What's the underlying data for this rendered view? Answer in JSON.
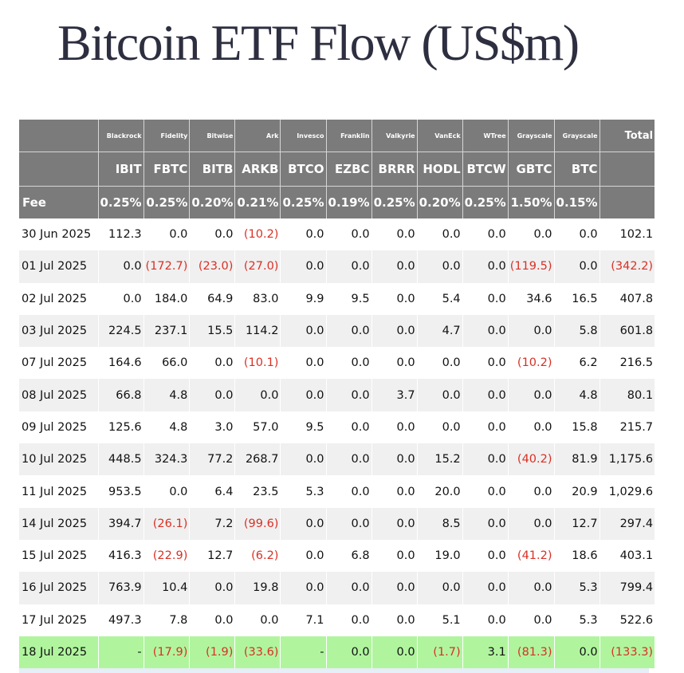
{
  "title": "Bitcoin ETF Flow (US$m)",
  "colors": {
    "header_bg": "#7b7b7b",
    "negative": "#d93025",
    "highlight_row": "#b0f59e",
    "alt_row": "#f0f0f0"
  },
  "chart_data": {
    "type": "table",
    "title": "Bitcoin ETF Flow (US$m)",
    "issuers": [
      "Blackrock",
      "Fidelity",
      "Bitwise",
      "Ark",
      "Invesco",
      "Franklin",
      "Valkyrie",
      "VanEck",
      "WTree",
      "Grayscale",
      "Grayscale"
    ],
    "tickers": [
      "IBIT",
      "FBTC",
      "BITB",
      "ARKB",
      "BTCO",
      "EZBC",
      "BRRR",
      "HODL",
      "BTCW",
      "GBTC",
      "BTC"
    ],
    "total_label": "Total",
    "fee_label": "Fee",
    "fees": [
      "0.25%",
      "0.25%",
      "0.20%",
      "0.21%",
      "0.25%",
      "0.19%",
      "0.25%",
      "0.20%",
      "0.25%",
      "1.50%",
      "0.15%"
    ],
    "rows": [
      {
        "date": "30 Jun 2025",
        "values": [
          "112.3",
          "0.0",
          "0.0",
          "(10.2)",
          "0.0",
          "0.0",
          "0.0",
          "0.0",
          "0.0",
          "0.0",
          "0.0"
        ],
        "total": "102.1"
      },
      {
        "date": "01 Jul 2025",
        "values": [
          "0.0",
          "(172.7)",
          "(23.0)",
          "(27.0)",
          "0.0",
          "0.0",
          "0.0",
          "0.0",
          "0.0",
          "(119.5)",
          "0.0"
        ],
        "total": "(342.2)"
      },
      {
        "date": "02 Jul 2025",
        "values": [
          "0.0",
          "184.0",
          "64.9",
          "83.0",
          "9.9",
          "9.5",
          "0.0",
          "5.4",
          "0.0",
          "34.6",
          "16.5"
        ],
        "total": "407.8"
      },
      {
        "date": "03 Jul 2025",
        "values": [
          "224.5",
          "237.1",
          "15.5",
          "114.2",
          "0.0",
          "0.0",
          "0.0",
          "4.7",
          "0.0",
          "0.0",
          "5.8"
        ],
        "total": "601.8"
      },
      {
        "date": "07 Jul 2025",
        "values": [
          "164.6",
          "66.0",
          "0.0",
          "(10.1)",
          "0.0",
          "0.0",
          "0.0",
          "0.0",
          "0.0",
          "(10.2)",
          "6.2"
        ],
        "total": "216.5"
      },
      {
        "date": "08 Jul 2025",
        "values": [
          "66.8",
          "4.8",
          "0.0",
          "0.0",
          "0.0",
          "0.0",
          "3.7",
          "0.0",
          "0.0",
          "0.0",
          "4.8"
        ],
        "total": "80.1"
      },
      {
        "date": "09 Jul 2025",
        "values": [
          "125.6",
          "4.8",
          "3.0",
          "57.0",
          "9.5",
          "0.0",
          "0.0",
          "0.0",
          "0.0",
          "0.0",
          "15.8"
        ],
        "total": "215.7"
      },
      {
        "date": "10 Jul 2025",
        "values": [
          "448.5",
          "324.3",
          "77.2",
          "268.7",
          "0.0",
          "0.0",
          "0.0",
          "15.2",
          "0.0",
          "(40.2)",
          "81.9"
        ],
        "total": "1,175.6"
      },
      {
        "date": "11 Jul 2025",
        "values": [
          "953.5",
          "0.0",
          "6.4",
          "23.5",
          "5.3",
          "0.0",
          "0.0",
          "20.0",
          "0.0",
          "0.0",
          "20.9"
        ],
        "total": "1,029.6"
      },
      {
        "date": "14 Jul 2025",
        "values": [
          "394.7",
          "(26.1)",
          "7.2",
          "(99.6)",
          "0.0",
          "0.0",
          "0.0",
          "8.5",
          "0.0",
          "0.0",
          "12.7"
        ],
        "total": "297.4"
      },
      {
        "date": "15 Jul 2025",
        "values": [
          "416.3",
          "(22.9)",
          "12.7",
          "(6.2)",
          "0.0",
          "6.8",
          "0.0",
          "19.0",
          "0.0",
          "(41.2)",
          "18.6"
        ],
        "total": "403.1"
      },
      {
        "date": "16 Jul 2025",
        "values": [
          "763.9",
          "10.4",
          "0.0",
          "19.8",
          "0.0",
          "0.0",
          "0.0",
          "0.0",
          "0.0",
          "0.0",
          "5.3"
        ],
        "total": "799.4"
      },
      {
        "date": "17 Jul 2025",
        "values": [
          "497.3",
          "7.8",
          "0.0",
          "0.0",
          "7.1",
          "0.0",
          "0.0",
          "5.1",
          "0.0",
          "0.0",
          "5.3"
        ],
        "total": "522.6"
      },
      {
        "date": "18 Jul 2025",
        "values": [
          "-",
          "(17.9)",
          "(1.9)",
          "(33.6)",
          "-",
          "0.0",
          "0.0",
          "(1.7)",
          "3.1",
          "(81.3)",
          "0.0"
        ],
        "total": "(133.3)",
        "highlight": true
      }
    ]
  }
}
